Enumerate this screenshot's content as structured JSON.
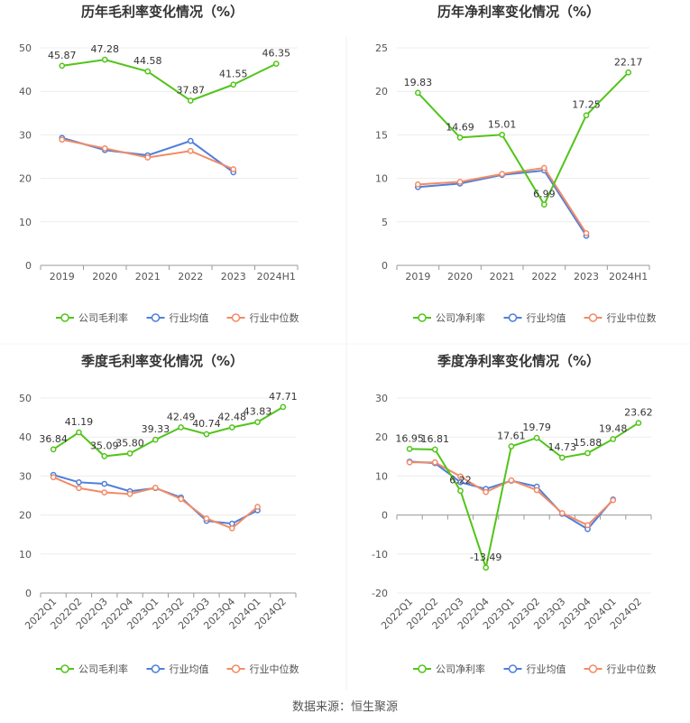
{
  "source_text": "数据来源：恒生聚源",
  "colors": {
    "company": "#52c41a",
    "avg": "#4f7fdb",
    "median": "#f28b66",
    "grid": "#ececec",
    "axis": "#999999",
    "text": "#555555",
    "title": "#333333"
  },
  "chart_data": [
    {
      "type": "line",
      "title": "历年毛利率变化情况（%）",
      "x": [
        "2019",
        "2020",
        "2021",
        "2022",
        "2023",
        "2024H1"
      ],
      "ylim": [
        0,
        50
      ],
      "yticks": [
        0,
        10,
        20,
        30,
        40,
        50
      ],
      "legend_position": "bottom",
      "series": [
        {
          "name": "公司毛利率",
          "values": [
            45.87,
            47.28,
            44.58,
            37.87,
            41.55,
            46.35
          ],
          "labels": [
            "45.87",
            "47.28",
            "44.58",
            "37.87",
            "41.55",
            "46.35"
          ]
        },
        {
          "name": "行业均值",
          "values": [
            29.3,
            26.5,
            25.3,
            28.6,
            21.4,
            null
          ]
        },
        {
          "name": "行业中位数",
          "values": [
            28.9,
            26.9,
            24.8,
            26.3,
            22.1,
            null
          ]
        }
      ]
    },
    {
      "type": "line",
      "title": "历年净利率变化情况（%）",
      "x": [
        "2019",
        "2020",
        "2021",
        "2022",
        "2023",
        "2024H1"
      ],
      "ylim": [
        0,
        25
      ],
      "yticks": [
        0,
        5,
        10,
        15,
        20,
        25
      ],
      "legend_position": "bottom",
      "series": [
        {
          "name": "公司净利率",
          "values": [
            19.83,
            14.69,
            15.01,
            6.99,
            17.25,
            22.17
          ],
          "labels": [
            "19.83",
            "14.69",
            "15.01",
            "6.99",
            "17.25",
            "22.17"
          ]
        },
        {
          "name": "行业均值",
          "values": [
            9.0,
            9.4,
            10.4,
            10.9,
            3.4,
            null
          ]
        },
        {
          "name": "行业中位数",
          "values": [
            9.3,
            9.6,
            10.5,
            11.2,
            3.7,
            null
          ]
        }
      ]
    },
    {
      "type": "line",
      "title": "季度毛利率变化情况（%）",
      "x": [
        "2022Q1",
        "2022Q2",
        "2022Q3",
        "2022Q4",
        "2023Q1",
        "2023Q2",
        "2023Q3",
        "2023Q4",
        "2024Q1",
        "2024Q2"
      ],
      "ylim": [
        0,
        50
      ],
      "yticks": [
        0,
        10,
        20,
        30,
        40,
        50
      ],
      "legend_position": "bottom",
      "series": [
        {
          "name": "公司毛利率",
          "values": [
            36.84,
            41.19,
            35.09,
            35.8,
            39.33,
            42.49,
            40.74,
            42.48,
            43.83,
            47.71
          ],
          "labels": [
            "36.84",
            "41.19",
            "35.09",
            "35.80",
            "39.33",
            "42.49",
            "40.74",
            "42.48",
            "43.83",
            "47.71"
          ]
        },
        {
          "name": "行业均值",
          "values": [
            30.3,
            28.4,
            28.0,
            26.1,
            26.9,
            24.5,
            18.5,
            17.8,
            21.2,
            null
          ]
        },
        {
          "name": "行业中位数",
          "values": [
            29.7,
            26.9,
            25.8,
            25.4,
            27.0,
            24.1,
            19.1,
            16.6,
            22.1,
            null
          ]
        }
      ]
    },
    {
      "type": "line",
      "title": "季度净利率变化情况（%）",
      "x": [
        "2022Q1",
        "2022Q2",
        "2022Q3",
        "2022Q4",
        "2023Q1",
        "2023Q2",
        "2023Q3",
        "2023Q4",
        "2024Q1",
        "2024Q2"
      ],
      "ylim": [
        -20,
        30
      ],
      "yticks": [
        -20,
        -10,
        0,
        10,
        20,
        30
      ],
      "legend_position": "bottom",
      "series": [
        {
          "name": "公司净利率",
          "values": [
            16.95,
            16.81,
            6.22,
            -13.49,
            17.61,
            19.79,
            14.73,
            15.88,
            19.48,
            23.62
          ],
          "labels": [
            "16.95",
            "16.81",
            "6.22",
            "-13.49",
            "17.61",
            "19.79",
            "14.73",
            "15.88",
            "19.48",
            "23.62"
          ]
        },
        {
          "name": "行业均值",
          "values": [
            13.7,
            13.3,
            8.4,
            6.7,
            8.8,
            7.3,
            0.3,
            -3.6,
            4.0,
            null
          ]
        },
        {
          "name": "行业中位数",
          "values": [
            13.5,
            13.5,
            9.9,
            5.9,
            8.9,
            6.4,
            0.5,
            -2.6,
            3.8,
            null
          ]
        }
      ]
    }
  ]
}
